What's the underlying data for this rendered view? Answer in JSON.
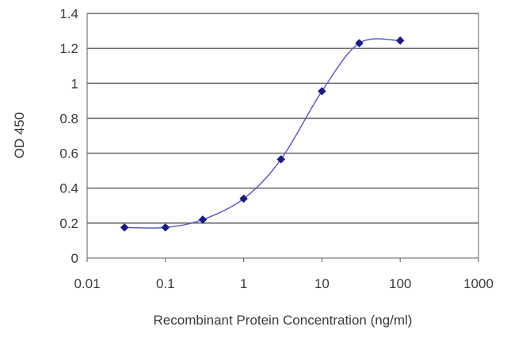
{
  "chart_data": {
    "type": "scatter",
    "title": "",
    "xlabel": "Recombinant Protein Concentration (ng/ml)",
    "ylabel": "OD 450",
    "x_scale": "log",
    "xlim": [
      0.01,
      1000
    ],
    "ylim": [
      0,
      1.4
    ],
    "x_ticks": [
      0.01,
      0.1,
      1,
      10,
      100,
      1000
    ],
    "x_tick_labels": [
      "0.01",
      "0.1",
      "1",
      "10",
      "100",
      "1000"
    ],
    "y_ticks": [
      0,
      0.2,
      0.4,
      0.6,
      0.8,
      1,
      1.2,
      1.4
    ],
    "y_tick_labels": [
      "0",
      "0.2",
      "0.4",
      "0.6",
      "0.8",
      "1",
      "1.2",
      "1.4"
    ],
    "grid": "horizontal",
    "legend": "none",
    "series": [
      {
        "x": [
          0.03,
          0.1,
          0.3,
          1,
          3,
          10,
          30,
          100
        ],
        "y": [
          0.175,
          0.175,
          0.22,
          0.34,
          0.565,
          0.955,
          1.23,
          1.245
        ],
        "color": "#1a1a8c",
        "marker": "diamond",
        "line": "smooth"
      }
    ]
  }
}
